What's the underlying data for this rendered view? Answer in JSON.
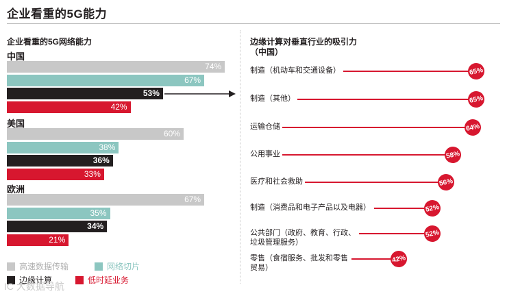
{
  "page_title": "企业看重的5G能力",
  "left_panel": {
    "subtitle": "企业看重的5G网络能力"
  },
  "right_panel": {
    "subtitle_line1": "边缘计算对垂直行业的吸引力",
    "subtitle_line2": "（中国）"
  },
  "colors": {
    "high_speed": "#c8c8c8",
    "slicing": "#8cc6c0",
    "edge": "#231f20",
    "low_latency": "#d7172f",
    "accent": "#d7172f"
  },
  "watermark": "IC 大数据导航",
  "chart_data": [
    {
      "type": "bar",
      "orientation": "horizontal",
      "title": "企业看重的5G网络能力",
      "categories": [
        "中国",
        "美国",
        "欧洲"
      ],
      "category_labels": [
        {
          "text": "中国"
        },
        {
          "text": "美国"
        },
        {
          "text": "欧洲"
        }
      ],
      "series": [
        {
          "name": "高速数据传输",
          "values": [
            74,
            60,
            67
          ],
          "labels": [
            "74%",
            "60%",
            "67%"
          ]
        },
        {
          "name": "网络切片",
          "values": [
            67,
            38,
            35
          ],
          "labels": [
            "67%",
            "38%",
            "35%"
          ]
        },
        {
          "name": "边缘计算",
          "values": [
            53,
            36,
            34
          ],
          "labels": [
            "53%",
            "36%",
            "34%"
          ]
        },
        {
          "name": "低时延业务",
          "values": [
            42,
            33,
            21
          ],
          "labels": [
            "42%",
            "33%",
            "21%"
          ]
        }
      ],
      "legend": [
        {
          "name": "高速数据传输"
        },
        {
          "name": "网络切片"
        },
        {
          "name": "边缘计算"
        },
        {
          "name": "低时延业务"
        }
      ],
      "unit": "%",
      "xlim": [
        0,
        100
      ],
      "legend_placement": "bottom"
    },
    {
      "type": "bar",
      "orientation": "horizontal",
      "title": "边缘计算对垂直行业的吸引力（中国）",
      "items": [
        {
          "label": "制造（机动车和交通设备）",
          "value": 65,
          "label_text": "65%"
        },
        {
          "label": "制造（其他）",
          "value": 65,
          "label_text": "65%"
        },
        {
          "label": "运输仓储",
          "value": 64,
          "label_text": "64%"
        },
        {
          "label": "公用事业",
          "value": 58,
          "label_text": "58%"
        },
        {
          "label": "医疗和社会救助",
          "value": 56,
          "label_text": "56%"
        },
        {
          "label": "制造（消费品和电子产品以及电器）",
          "value": 52,
          "label_text": "52%"
        },
        {
          "label": "公共部门（政府、教育、行政、\n垃圾管理服务）",
          "value": 52,
          "label_text": "52%"
        },
        {
          "label": "零售（食宿服务、批发和零售\n贸易）",
          "value": 42,
          "label_text": "42%"
        }
      ],
      "unit": "%"
    }
  ]
}
